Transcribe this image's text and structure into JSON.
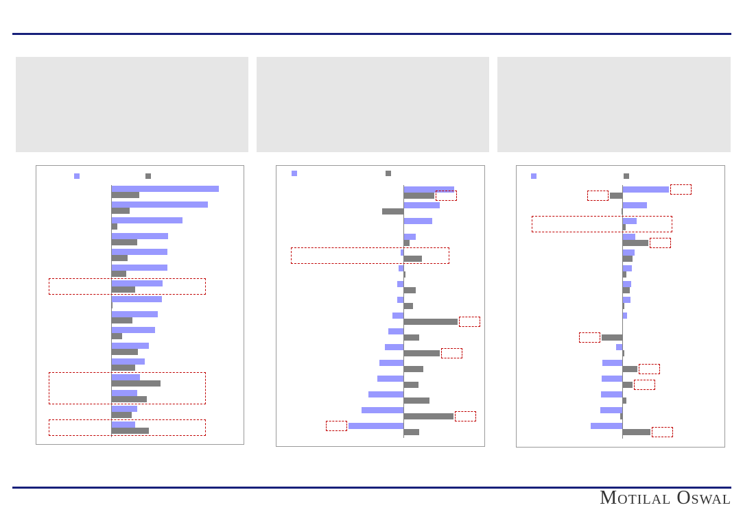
{
  "brand": {
    "logo_text": "Motilal Oswal"
  },
  "colors": {
    "rule": "#17207a",
    "panel": "#e6e6e6",
    "highlight": "#c00000"
  },
  "chart_data": [
    {
      "type": "bar",
      "orientation": "horizontal",
      "legend": "top",
      "grid": false,
      "series": [
        {
          "color": "#9999ff",
          "values": [
            100,
            90,
            66,
            53,
            52,
            52,
            48,
            47,
            43,
            41,
            35,
            31,
            27,
            24,
            24,
            22
          ]
        },
        {
          "color": "#808080",
          "values": [
            26,
            17,
            6,
            24,
            15,
            14,
            22,
            1,
            20,
            10,
            25,
            22,
            46,
            33,
            19,
            35
          ]
        }
      ],
      "highlights": [
        {
          "rows": [
            6
          ]
        },
        {
          "rows": [
            12,
            13
          ]
        },
        {
          "rows": [
            15
          ]
        }
      ]
    },
    {
      "type": "bar",
      "orientation": "horizontal",
      "legend": "top",
      "grid": false,
      "series": [
        {
          "color": "#9999ff",
          "values": [
            93,
            66,
            53,
            23,
            -5,
            -9,
            -11,
            -11,
            -20,
            -28,
            -34,
            -44,
            -48,
            -64,
            -76,
            -100
          ]
        },
        {
          "color": "#808080",
          "values": [
            56,
            -39,
            0,
            11,
            34,
            4,
            23,
            18,
            99,
            29,
            66,
            36,
            28,
            48,
            91,
            29
          ]
        }
      ],
      "highlights": [
        {
          "row": 0,
          "series": 1
        },
        {
          "rows": [
            4
          ]
        },
        {
          "row": 8,
          "series": 1
        },
        {
          "row": 10,
          "series": 1
        },
        {
          "row": 14,
          "series": 1
        },
        {
          "row": 15,
          "series": 0
        }
      ]
    },
    {
      "type": "bar",
      "orientation": "horizontal",
      "legend": "top",
      "grid": false,
      "series": [
        {
          "color": "#9999ff",
          "values": [
            100,
            53,
            31,
            28,
            26,
            21,
            19,
            18,
            10,
            0,
            -13,
            -43,
            -44,
            -46,
            -47,
            -68
          ]
        },
        {
          "color": "#808080",
          "values": [
            -26,
            -1,
            7,
            56,
            22,
            9,
            16,
            4,
            0,
            -44,
            4,
            32,
            22,
            9,
            -4,
            60
          ]
        }
      ],
      "highlights": [
        {
          "row": 0,
          "series": 0
        },
        {
          "row": 0,
          "series": 1
        },
        {
          "rows": [
            2
          ]
        },
        {
          "row": 3,
          "series": 1
        },
        {
          "row": 9,
          "series": 1
        },
        {
          "row": 11,
          "series": 1
        },
        {
          "row": 12,
          "series": 1
        },
        {
          "row": 15,
          "series": 1
        }
      ]
    }
  ]
}
